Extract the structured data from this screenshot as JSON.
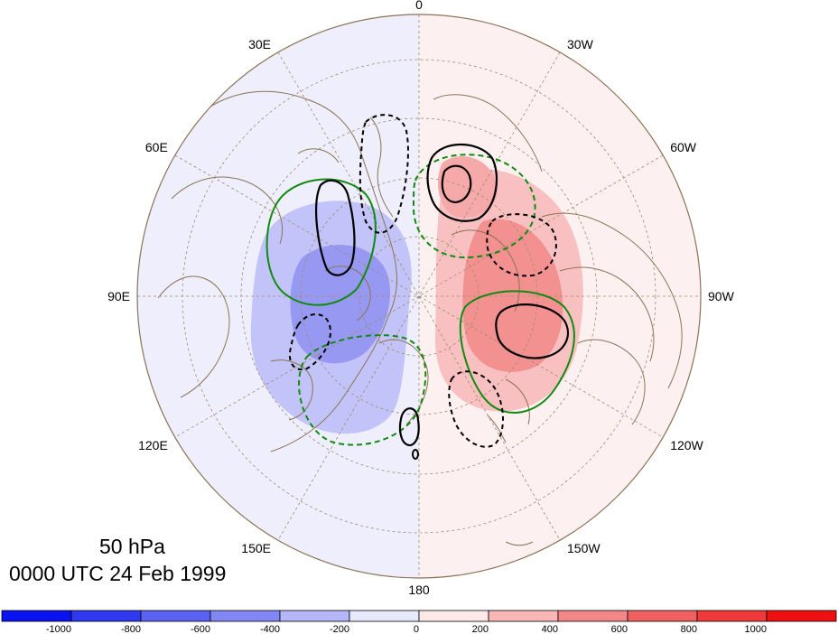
{
  "title": {
    "level": "50 hPa",
    "time": "0000 UTC 24 Feb 1999"
  },
  "longitude_labels": [
    {
      "text": "0",
      "lon": 0
    },
    {
      "text": "30W",
      "lon": -30
    },
    {
      "text": "60W",
      "lon": -60
    },
    {
      "text": "90W",
      "lon": -90
    },
    {
      "text": "120W",
      "lon": -120
    },
    {
      "text": "150W",
      "lon": -150
    },
    {
      "text": "180",
      "lon": 180
    },
    {
      "text": "150E",
      "lon": 150
    },
    {
      "text": "120E",
      "lon": 120
    },
    {
      "text": "90E",
      "lon": 90
    },
    {
      "text": "60E",
      "lon": 60
    },
    {
      "text": "30E",
      "lon": 30
    }
  ],
  "colorbar": {
    "labels": [
      "-1000",
      "-800",
      "-600",
      "-400",
      "-200",
      "0",
      "200",
      "400",
      "600",
      "800",
      "1000"
    ],
    "colors": [
      "#0a12ef",
      "#3039f0",
      "#5b61f1",
      "#8287f3",
      "#b4b6f8",
      "#e9e9fc",
      "#fde9e9",
      "#f8b6b6",
      "#f38787",
      "#f16060",
      "#f0393a",
      "#ef1111"
    ]
  },
  "colors": {
    "land_outline": "#8b7355",
    "grid": "#a08a70",
    "contour_black": "#000000",
    "contour_green": "#118a11",
    "map_border": "#8b7355"
  }
}
